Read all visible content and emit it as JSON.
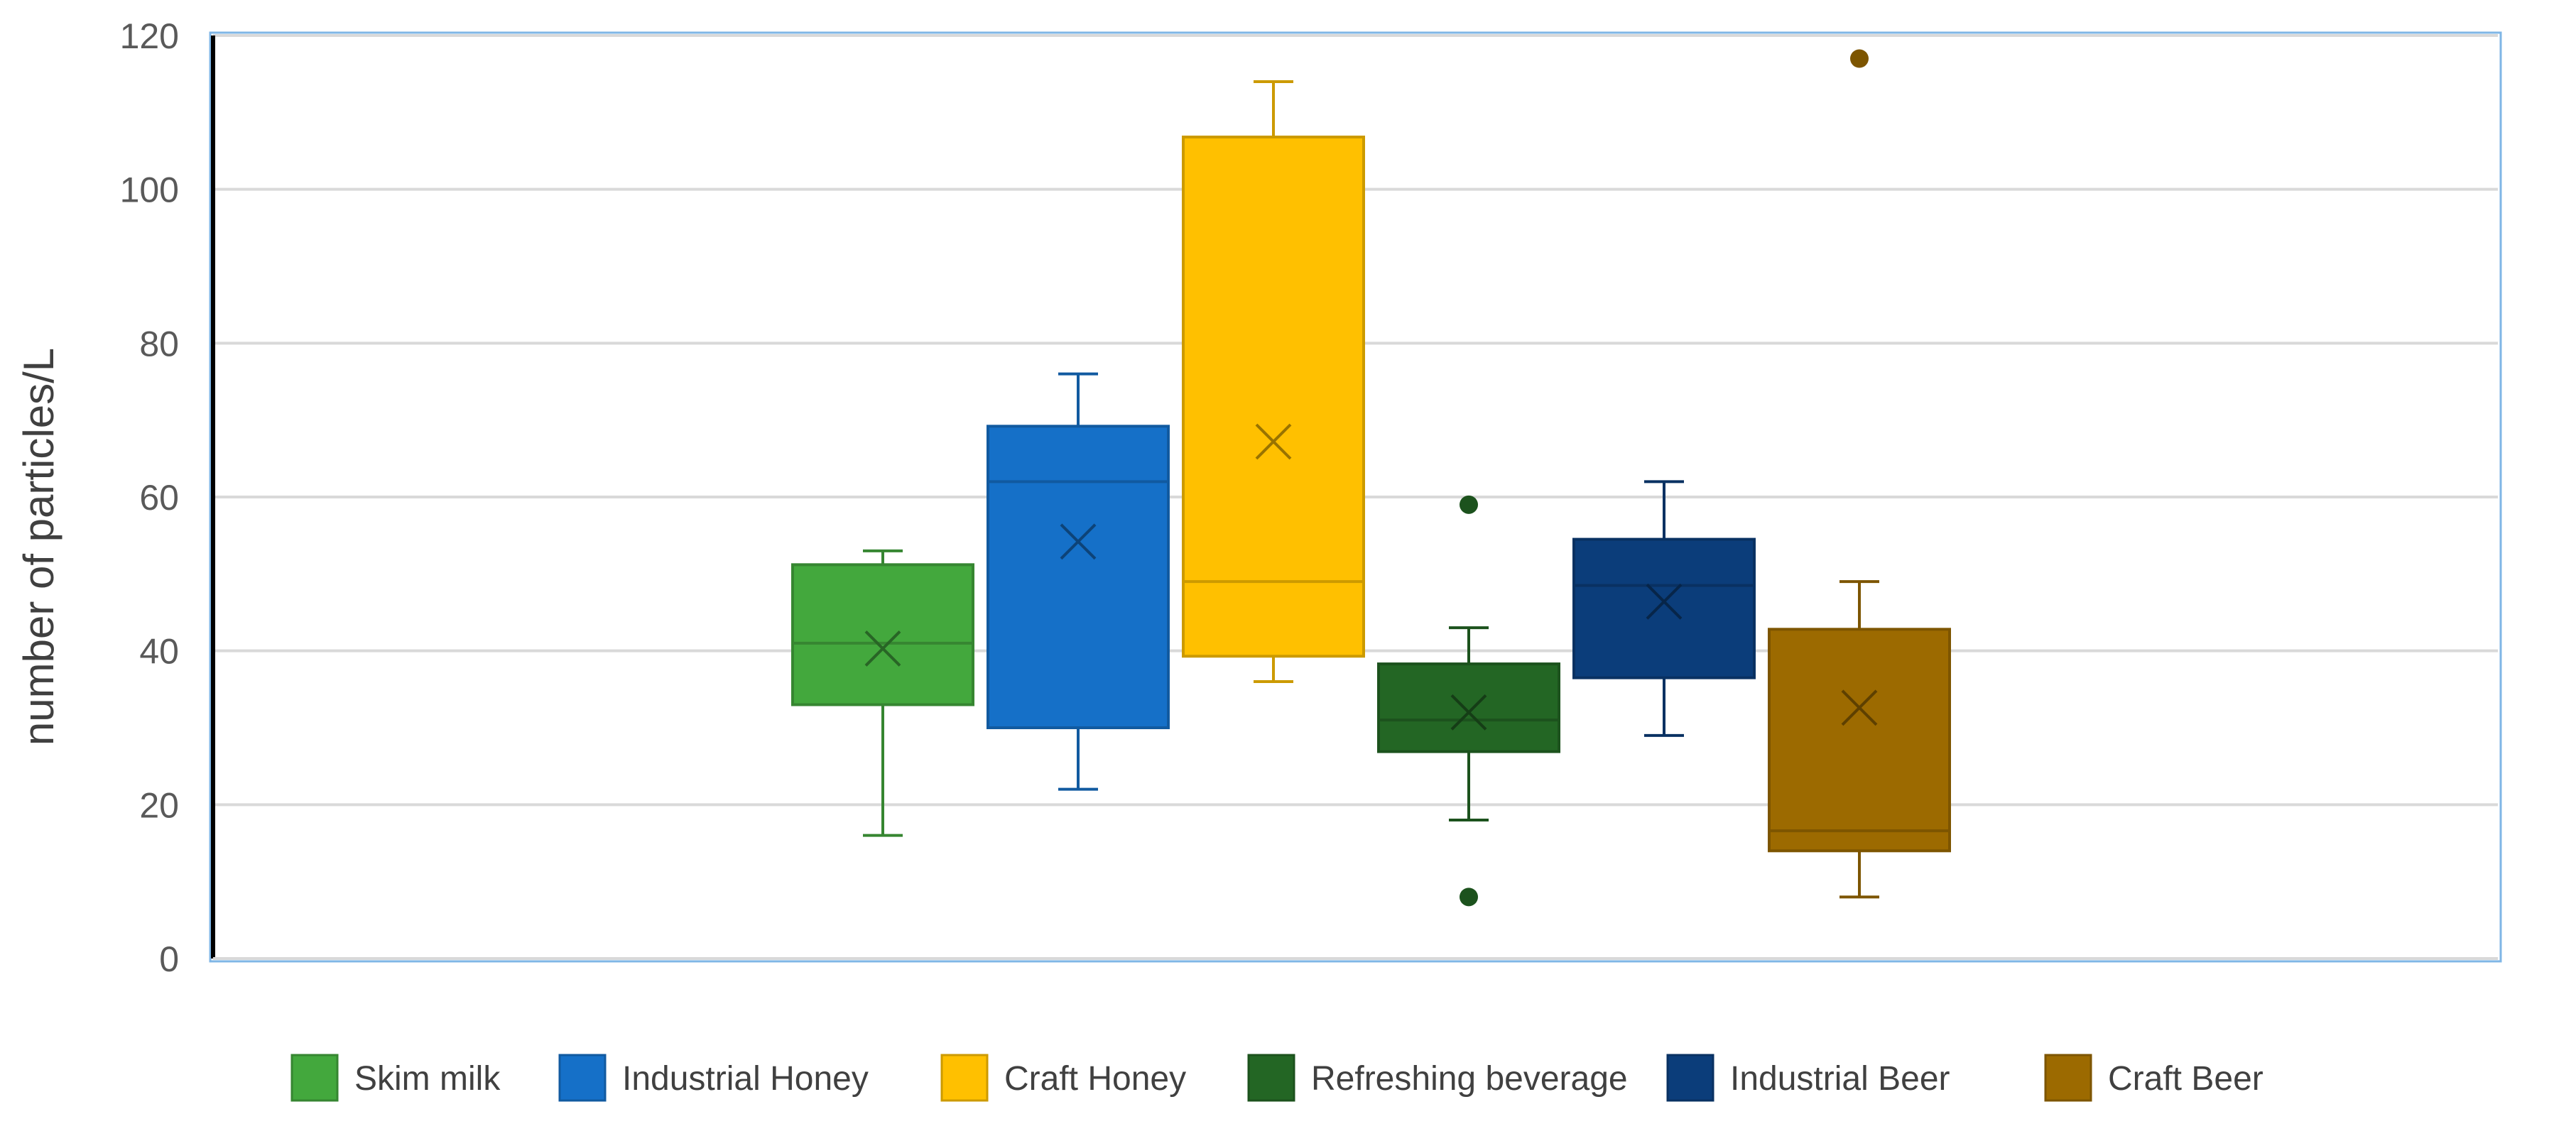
{
  "chart_data": {
    "type": "box",
    "title": "",
    "xlabel": "",
    "ylabel": "number of particles/L",
    "ylim": [
      0,
      120
    ],
    "yticks": [
      "0",
      "20",
      "40",
      "60",
      "80",
      "100",
      "120"
    ],
    "grid": true,
    "legend_position": "bottom",
    "series": [
      {
        "name": "Skim milk",
        "color": "#43a83d",
        "whisker_low": 16,
        "q1": 33,
        "median": 41,
        "q3": 51.2,
        "whisker_high": 53,
        "mean": 40.3,
        "outliers": []
      },
      {
        "name": "Industrial Honey",
        "color": "#1570c8",
        "whisker_low": 22,
        "q1": 30,
        "median": 62,
        "q3": 69.2,
        "whisker_high": 76,
        "mean": 54.2,
        "outliers": []
      },
      {
        "name": "Craft Honey",
        "color": "#ffc000",
        "whisker_low": 36,
        "q1": 39.3,
        "median": 49,
        "q3": 106.8,
        "whisker_high": 114,
        "mean": 67.2,
        "outliers": []
      },
      {
        "name": "Refreshing beverage",
        "color": "#236624",
        "whisker_low": 18,
        "q1": 26.9,
        "median": 31,
        "q3": 38.3,
        "whisker_high": 43,
        "mean": 32,
        "outliers": [
          59,
          8
        ]
      },
      {
        "name": "Industrial Beer",
        "color": "#0b3d7a",
        "whisker_low": 29,
        "q1": 36.5,
        "median": 48.5,
        "q3": 54.5,
        "whisker_high": 62,
        "mean": 46.4,
        "outliers": []
      },
      {
        "name": "Craft Beer",
        "color": "#9c6a00",
        "whisker_low": 8,
        "q1": 14,
        "median": 16.6,
        "q3": 42.8,
        "whisker_high": 49,
        "mean": 32.6,
        "outliers": [
          117
        ]
      }
    ]
  }
}
